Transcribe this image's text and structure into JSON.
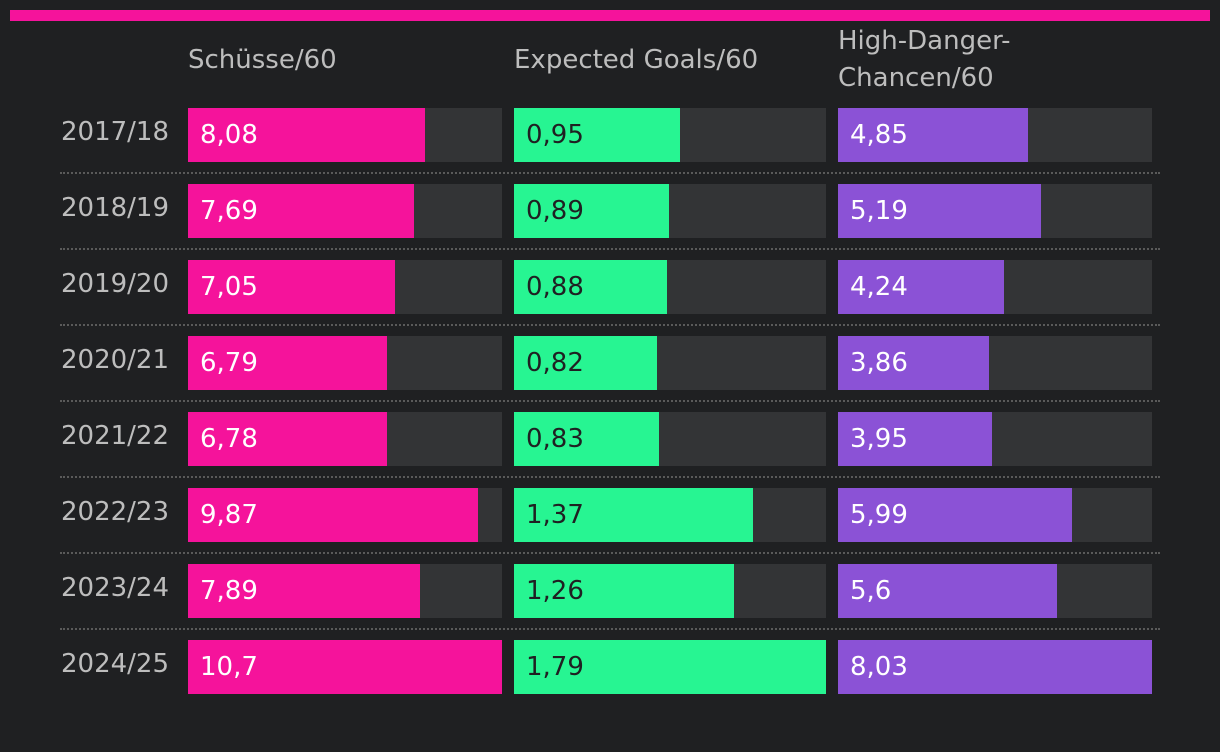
{
  "accent_color": "#f5139b",
  "chart_data": {
    "type": "bar",
    "categories": [
      "2017/18",
      "2018/19",
      "2019/20",
      "2020/21",
      "2021/22",
      "2022/23",
      "2023/24",
      "2024/25"
    ],
    "series": [
      {
        "name": "Schüsse/60",
        "color": "#f5139b",
        "label_color": "#ffffff",
        "max": 10.7,
        "values": [
          8.08,
          7.69,
          7.05,
          6.79,
          6.78,
          9.87,
          7.89,
          10.7
        ],
        "labels": [
          "8,08",
          "7,69",
          "7,05",
          "6,79",
          "6,78",
          "9,87",
          "7,89",
          "10,7"
        ]
      },
      {
        "name": "Expected Goals/60",
        "color": "#27f592",
        "label_color": "#1f2022",
        "max": 1.79,
        "values": [
          0.95,
          0.89,
          0.88,
          0.82,
          0.83,
          1.37,
          1.26,
          1.79
        ],
        "labels": [
          "0,95",
          "0,89",
          "0,88",
          "0,82",
          "0,83",
          "1,37",
          "1,26",
          "1,79"
        ]
      },
      {
        "name": "High-Danger-\nChancen/60",
        "color": "#8b52d6",
        "label_color": "#ffffff",
        "max": 8.03,
        "values": [
          4.85,
          5.19,
          4.24,
          3.86,
          3.95,
          5.99,
          5.6,
          8.03
        ],
        "labels": [
          "4,85",
          "5,19",
          "4,24",
          "3,86",
          "3,95",
          "5,99",
          "5,6",
          "8,03"
        ]
      }
    ]
  }
}
